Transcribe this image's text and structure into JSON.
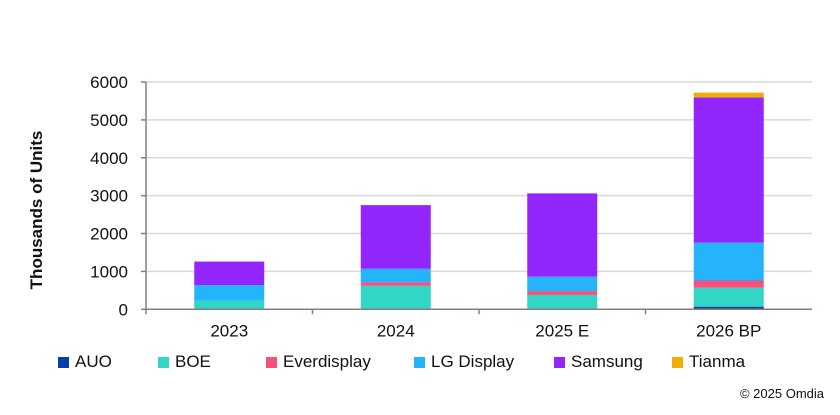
{
  "chart_data": {
    "type": "bar",
    "stacked": true,
    "title": "",
    "xlabel": "",
    "ylabel": "Thousands of Units",
    "ylim": [
      0,
      6000
    ],
    "yticks": [
      0,
      1000,
      2000,
      3000,
      4000,
      5000,
      6000
    ],
    "grid": true,
    "legend_position": "bottom",
    "categories": [
      "2023",
      "2024",
      "2025 E",
      "2026 BP"
    ],
    "series": [
      {
        "name": "AUO",
        "color": "#0a3ea8",
        "values": [
          0,
          0,
          0,
          70
        ]
      },
      {
        "name": "BOE",
        "color": "#32d6c6",
        "values": [
          230,
          620,
          380,
          500
        ]
      },
      {
        "name": "Everdisplay",
        "color": "#f5527a",
        "values": [
          0,
          90,
          100,
          190
        ]
      },
      {
        "name": "LG Display",
        "color": "#25b3fc",
        "values": [
          410,
          360,
          380,
          1000
        ]
      },
      {
        "name": "Samsung",
        "color": "#9326fd",
        "values": [
          620,
          1680,
          2200,
          3830
        ]
      },
      {
        "name": "Tianma",
        "color": "#f0ae05",
        "values": [
          0,
          0,
          0,
          130
        ]
      }
    ]
  },
  "copyright": "© 2025 Omdia"
}
